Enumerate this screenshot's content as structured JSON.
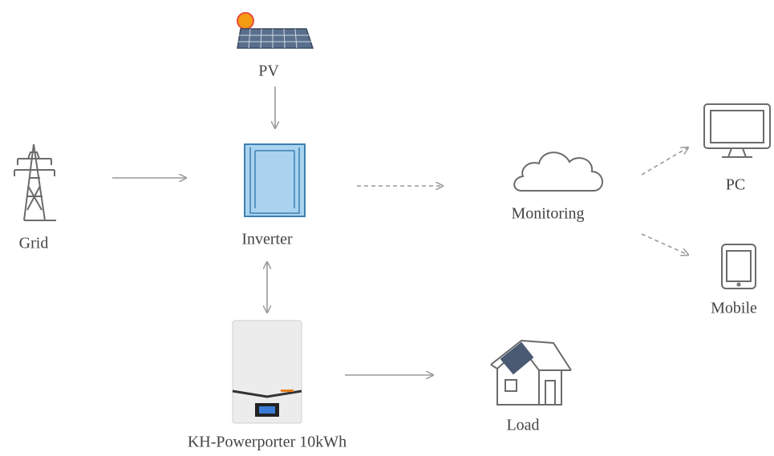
{
  "nodes": [
    {
      "label": "PV"
    },
    {
      "label": "Grid"
    },
    {
      "label": "Inverter"
    },
    {
      "label": "Monitoring"
    },
    {
      "label": "PC"
    },
    {
      "label": "Mobile"
    },
    {
      "label": "KH-Powerporter 10kWh"
    },
    {
      "label": "Load"
    }
  ]
}
